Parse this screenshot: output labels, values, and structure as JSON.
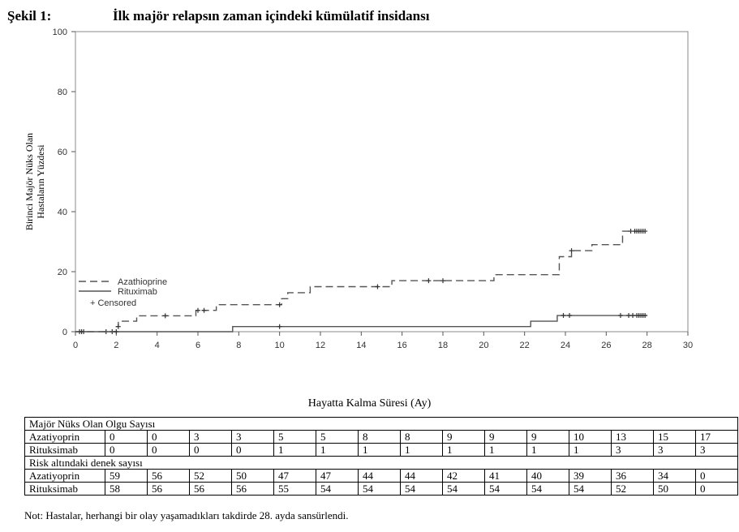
{
  "figure": {
    "label": "Şekil 1:",
    "title": "İlk majör relapsın zaman içindeki kümülatif insidansı"
  },
  "chart_data": {
    "type": "line",
    "title": "İlk majör relapsın zaman içindeki kümülatif insidansı",
    "xlabel": "Hayatta Kalma Süresi (Ay)",
    "ylabel": [
      "Birinci Majör Nüks Olan",
      "Hastaların Yüzdesi"
    ],
    "xlim": [
      0,
      30
    ],
    "ylim": [
      0,
      100
    ],
    "xticks": [
      0,
      2,
      4,
      6,
      8,
      10,
      12,
      14,
      16,
      18,
      20,
      22,
      24,
      26,
      28,
      30
    ],
    "yticks": [
      0,
      20,
      40,
      60,
      80,
      100
    ],
    "grid": false,
    "legend_position": "bottom-left",
    "legend": [
      "Azathioprine",
      "Rituximab",
      "+ Censored"
    ],
    "series": [
      {
        "name": "Azathioprine",
        "style": "dashed",
        "step": true,
        "x": [
          0,
          2.0,
          2.1,
          2.3,
          3.0,
          5.9,
          6.1,
          6.9,
          10.1,
          10.4,
          11.5,
          15.5,
          20.5,
          23.7,
          24.3,
          25.3,
          26.8,
          27.9
        ],
        "y": [
          0,
          1.7,
          3.5,
          3.5,
          5.3,
          7.1,
          7.1,
          9.0,
          11.0,
          13.0,
          15.0,
          17.0,
          19.0,
          25.0,
          27.0,
          29.0,
          33.5,
          33.5
        ],
        "censored": [
          [
            0.2,
            0
          ],
          [
            0.4,
            0
          ],
          [
            1.5,
            0
          ],
          [
            1.8,
            0
          ],
          [
            2.1,
            1.7
          ],
          [
            4.4,
            5.3
          ],
          [
            6.0,
            7.1
          ],
          [
            6.3,
            7.1
          ],
          [
            10.0,
            9.0
          ],
          [
            14.8,
            15.0
          ],
          [
            17.3,
            17.0
          ],
          [
            18.0,
            17.0
          ],
          [
            24.3,
            27.0
          ],
          [
            27.2,
            33.5
          ],
          [
            27.4,
            33.5
          ],
          [
            27.5,
            33.5
          ],
          [
            27.6,
            33.5
          ],
          [
            27.7,
            33.5
          ],
          [
            27.8,
            33.5
          ],
          [
            27.9,
            33.5
          ]
        ]
      },
      {
        "name": "Rituximab",
        "style": "solid",
        "step": true,
        "x": [
          0,
          7.7,
          22.3,
          23.6,
          28.0
        ],
        "y": [
          0,
          1.7,
          3.5,
          5.4,
          5.4
        ],
        "censored": [
          [
            0.3,
            0
          ],
          [
            2.0,
            0
          ],
          [
            10.0,
            1.7
          ],
          [
            23.9,
            5.4
          ],
          [
            24.2,
            5.4
          ],
          [
            26.7,
            5.4
          ],
          [
            27.1,
            5.4
          ],
          [
            27.3,
            5.4
          ],
          [
            27.5,
            5.4
          ],
          [
            27.6,
            5.4
          ],
          [
            27.7,
            5.4
          ],
          [
            27.8,
            5.4
          ],
          [
            27.9,
            5.4
          ]
        ]
      }
    ]
  },
  "risk_table": {
    "header1": "Majör Nüks Olan Olgu Sayısı",
    "rows1": [
      {
        "name": "Azatiyoprin",
        "values": [
          "0",
          "0",
          "3",
          "3",
          "5",
          "5",
          "8",
          "8",
          "9",
          "9",
          "9",
          "10",
          "13",
          "15",
          "17"
        ]
      },
      {
        "name": "Rituksimab",
        "values": [
          "0",
          "0",
          "0",
          "0",
          "1",
          "1",
          "1",
          "1",
          "1",
          "1",
          "1",
          "1",
          "3",
          "3",
          "3"
        ]
      }
    ],
    "header2": "Risk altındaki denek sayısı",
    "rows2": [
      {
        "name": "Azatiyoprin",
        "values": [
          "59",
          "56",
          "52",
          "50",
          "47",
          "47",
          "44",
          "44",
          "42",
          "41",
          "40",
          "39",
          "36",
          "34",
          "0"
        ]
      },
      {
        "name": "Rituksimab",
        "values": [
          "58",
          "56",
          "56",
          "56",
          "55",
          "54",
          "54",
          "54",
          "54",
          "54",
          "54",
          "54",
          "52",
          "50",
          "0"
        ]
      }
    ]
  },
  "note": "Not: Hastalar, herhangi bir olay yaşamadıkları takdirde 28. ayda sansürlendi."
}
